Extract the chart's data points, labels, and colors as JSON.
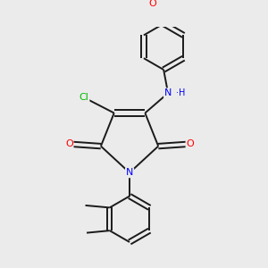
{
  "background_color": "#ebebeb",
  "bond_color": "#1a1a1a",
  "atom_colors": {
    "O": "#ff0000",
    "N": "#0000ff",
    "Cl": "#00bb00",
    "C": "#1a1a1a"
  },
  "bond_width": 1.4,
  "figsize": [
    3.0,
    3.0
  ],
  "dpi": 100
}
